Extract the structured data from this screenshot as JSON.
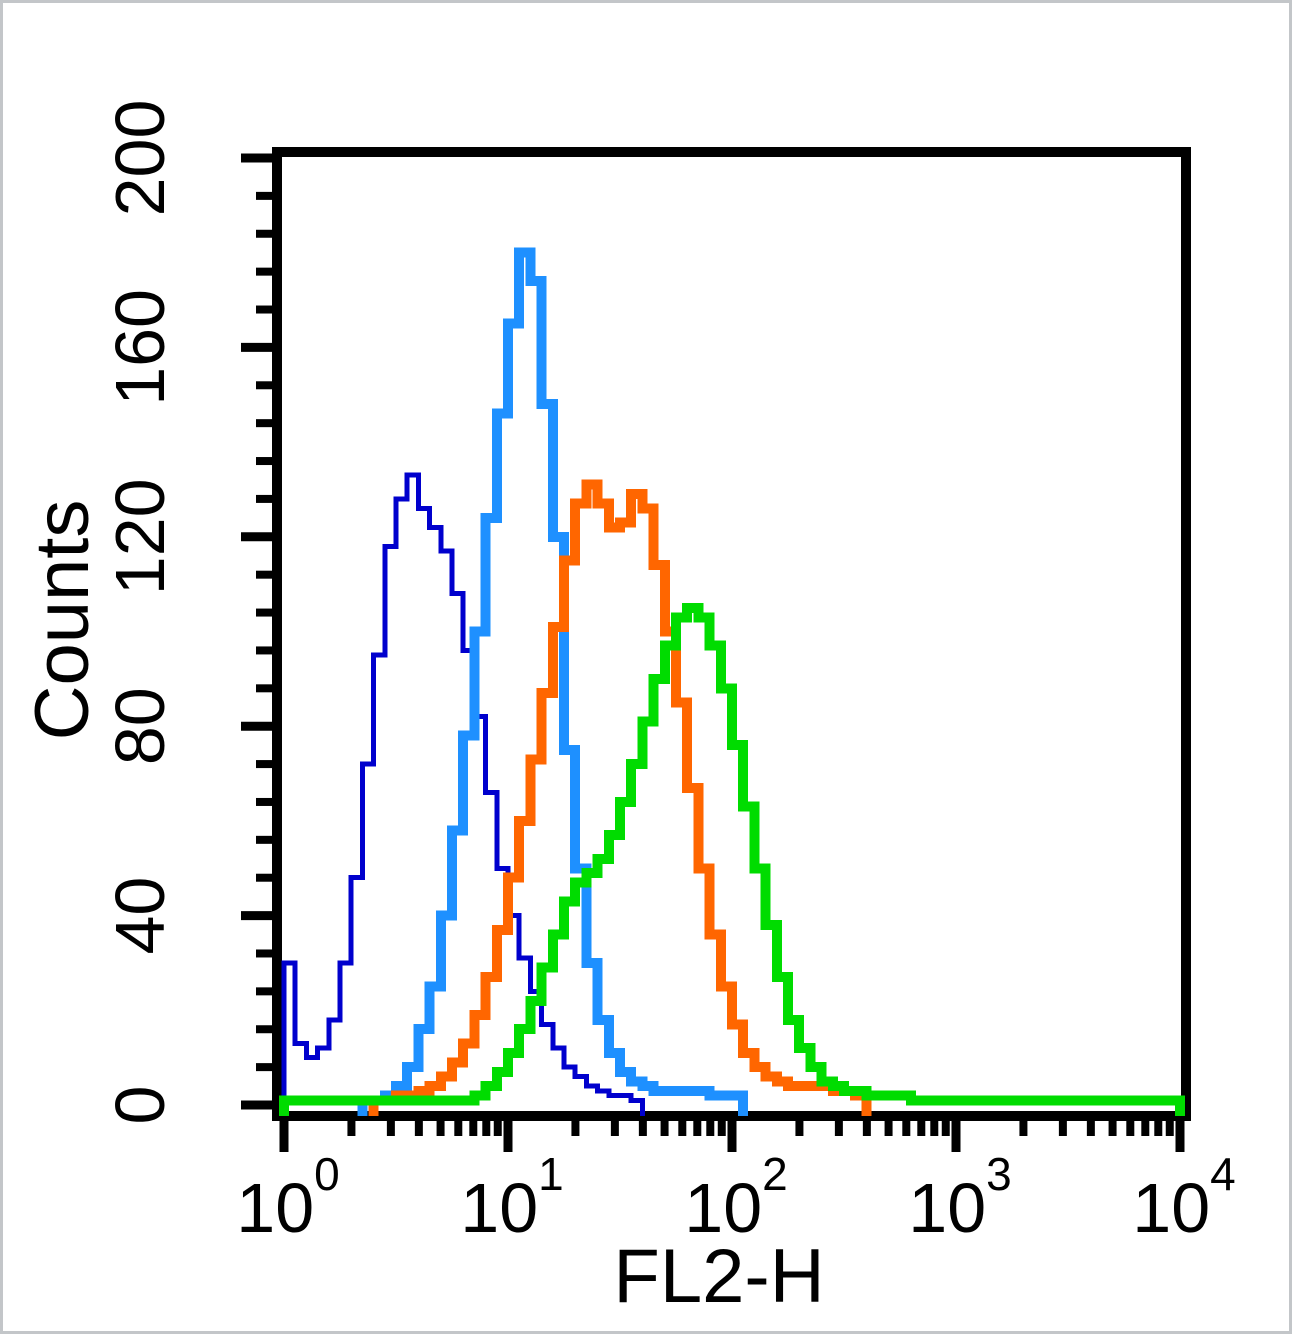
{
  "figure": {
    "background": "#ffffff",
    "border_color": "#c3c6c9"
  },
  "chart_data": {
    "type": "histogram-step-overlay",
    "description": "Flow cytometry overlay histogram, four step-line populations on log fluorescence axis",
    "title": "",
    "xlabel": "FL2-H",
    "ylabel": "Counts",
    "x_scale": "log10",
    "x_tick_base": "10",
    "x_tick_exponents": [
      0,
      1,
      2,
      3,
      4
    ],
    "x_minor_mantissas": [
      2,
      3,
      4,
      5,
      6,
      7,
      8,
      9
    ],
    "ylim": [
      0,
      200
    ],
    "y_major_ticks": [
      0,
      40,
      80,
      120,
      160,
      200
    ],
    "y_minor_step": 8,
    "grid": false,
    "legend": "none",
    "bins_per_decade": 20,
    "bin_log_start": 0,
    "series": [
      {
        "name": "dark-blue",
        "color": "#0000CD",
        "line_width": 5,
        "peak_x": 4,
        "peak_count": 133,
        "values": [
          30,
          13,
          10,
          12,
          18,
          30,
          48,
          72,
          95,
          118,
          128,
          133,
          126,
          122,
          117,
          108,
          96,
          82,
          66,
          50,
          40,
          31,
          24,
          17,
          12,
          8,
          6,
          4,
          3,
          2,
          2,
          1,
          0,
          0,
          0,
          0,
          0,
          0,
          0,
          0,
          0,
          0,
          0,
          0,
          0,
          0,
          0,
          0,
          0,
          0,
          0,
          0,
          0,
          0,
          0,
          0,
          0,
          0,
          0,
          0,
          0,
          0,
          0,
          0,
          0,
          0,
          0,
          0,
          0,
          0,
          0,
          0,
          0,
          0,
          0,
          0,
          0,
          0,
          0,
          0
        ]
      },
      {
        "name": "light-blue",
        "color": "#1E90FF",
        "line_width": 10,
        "peak_x": 12,
        "peak_count": 180,
        "values": [
          0,
          0,
          0,
          0,
          0,
          0,
          0,
          1,
          1,
          2,
          4,
          8,
          16,
          25,
          40,
          58,
          78,
          100,
          124,
          146,
          165,
          180,
          174,
          148,
          120,
          75,
          50,
          30,
          18,
          11,
          7,
          5,
          4,
          3,
          3,
          3,
          3,
          3,
          2,
          2,
          2,
          0,
          0,
          0,
          0,
          0,
          0,
          0,
          0,
          0,
          0,
          0,
          0,
          0,
          0,
          0,
          0,
          0,
          0,
          0,
          0,
          0,
          0,
          0,
          0,
          0,
          0,
          0,
          0,
          0,
          0,
          0,
          0,
          0,
          0,
          0,
          0,
          0,
          0,
          0
        ]
      },
      {
        "name": "orange",
        "color": "#FF6600",
        "line_width": 10,
        "peak_x": 24,
        "peak_count": 131,
        "values": [
          0,
          0,
          0,
          0,
          0,
          0,
          0,
          0,
          1,
          1,
          2,
          2,
          3,
          4,
          6,
          9,
          13,
          19,
          27,
          37,
          48,
          60,
          73,
          87,
          101,
          115,
          127,
          131,
          127,
          122,
          123,
          129,
          126,
          114,
          100,
          85,
          67,
          50,
          36,
          25,
          17,
          11,
          8,
          6,
          5,
          4,
          4,
          4,
          4,
          3,
          3,
          2,
          0,
          0,
          0,
          0,
          0,
          0,
          0,
          0,
          0,
          0,
          0,
          0,
          0,
          0,
          0,
          0,
          0,
          0,
          0,
          0,
          0,
          0,
          0,
          0,
          0,
          0,
          0,
          0
        ]
      },
      {
        "name": "green",
        "color": "#00DC00",
        "line_width": 10,
        "peak_x": 66,
        "peak_count": 105,
        "values": [
          1,
          1,
          1,
          1,
          1,
          1,
          1,
          1,
          1,
          1,
          1,
          1,
          1,
          1,
          1,
          1,
          1,
          2,
          4,
          7,
          11,
          16,
          22,
          29,
          36,
          43,
          47,
          49,
          52,
          57,
          64,
          72,
          81,
          90,
          97,
          103,
          105,
          103,
          97,
          88,
          76,
          63,
          50,
          38,
          27,
          18,
          12,
          8,
          5,
          4,
          3,
          3,
          2,
          2,
          2,
          2,
          1,
          1,
          1,
          1,
          1,
          1,
          1,
          1,
          1,
          1,
          1,
          1,
          1,
          1,
          1,
          1,
          1,
          1,
          1,
          1,
          1,
          1,
          1,
          1
        ]
      }
    ]
  }
}
